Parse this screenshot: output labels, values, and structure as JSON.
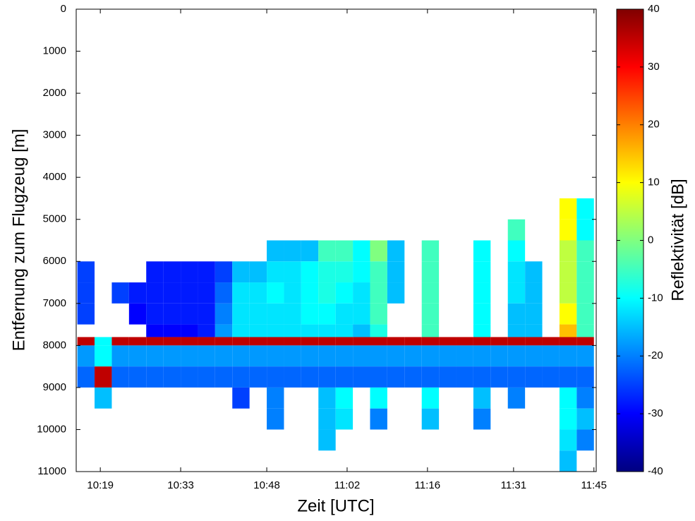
{
  "chart_data": {
    "type": "heatmap",
    "colormap": "jet",
    "xlabel": "Zeit [UTC]",
    "ylabel": "Entfernung zum Flugzeug [m]",
    "colorbar_label": "Reflektivität [dB]",
    "xlim": [
      614.8,
      705.4
    ],
    "xticks": [
      {
        "value": 619,
        "label": "10:19"
      },
      {
        "value": 633,
        "label": "10:33"
      },
      {
        "value": 648,
        "label": "10:48"
      },
      {
        "value": 662,
        "label": "11:02"
      },
      {
        "value": 676,
        "label": "11:16"
      },
      {
        "value": 691,
        "label": "11:31"
      },
      {
        "value": 705,
        "label": "11:45"
      }
    ],
    "ylim": [
      0,
      11000
    ],
    "y_reversed": true,
    "yticks": [
      0,
      1000,
      2000,
      3000,
      4000,
      5000,
      6000,
      7000,
      8000,
      9000,
      10000,
      11000
    ],
    "clim": [
      -40,
      40
    ],
    "cticks": [
      -40,
      -30,
      -20,
      -10,
      0,
      10,
      20,
      30,
      40
    ],
    "x_edges": [
      615,
      618,
      621,
      624,
      627,
      630,
      633,
      636,
      639,
      642,
      645,
      648,
      651,
      654,
      657,
      660,
      663,
      666,
      669,
      672,
      675,
      678,
      681,
      684,
      687,
      690,
      693,
      696,
      699,
      702,
      705
    ],
    "y_edges": [
      4500,
      5000,
      5500,
      6000,
      6500,
      7000,
      7500,
      7800,
      8000,
      8500,
      9000,
      9500,
      10000,
      10500,
      11000
    ],
    "z": [
      [
        null,
        null,
        null,
        null,
        null,
        null,
        null,
        null,
        null,
        null,
        null,
        null,
        null,
        null,
        null,
        null,
        null,
        null,
        null,
        null,
        null,
        null,
        null,
        null,
        null,
        null,
        null,
        null,
        10,
        -10
      ],
      [
        null,
        null,
        null,
        null,
        null,
        null,
        null,
        null,
        null,
        null,
        null,
        null,
        null,
        null,
        null,
        null,
        null,
        null,
        null,
        null,
        null,
        null,
        null,
        null,
        null,
        -5,
        null,
        null,
        10,
        -10
      ],
      [
        null,
        null,
        null,
        null,
        null,
        null,
        null,
        null,
        null,
        null,
        null,
        -15,
        -15,
        -15,
        -5,
        -5,
        -10,
        0,
        -15,
        null,
        -5,
        null,
        null,
        -10,
        null,
        -10,
        null,
        null,
        5,
        -5
      ],
      [
        -25,
        null,
        null,
        null,
        -28,
        -28,
        -28,
        -28,
        -25,
        -15,
        -15,
        -12,
        -12,
        -10,
        -8,
        -8,
        -10,
        -5,
        -15,
        null,
        -5,
        null,
        null,
        -10,
        null,
        -12,
        -15,
        null,
        5,
        -5
      ],
      [
        -25,
        null,
        -25,
        -28,
        -28,
        -28,
        -28,
        -28,
        -22,
        -12,
        -12,
        -10,
        -12,
        -10,
        -8,
        -10,
        -12,
        -5,
        -15,
        null,
        -5,
        null,
        null,
        -10,
        null,
        -12,
        -15,
        null,
        5,
        -5
      ],
      [
        -25,
        null,
        null,
        -30,
        -28,
        -28,
        -28,
        -28,
        -20,
        -12,
        -12,
        -12,
        -12,
        -10,
        -10,
        -12,
        -12,
        -5,
        null,
        null,
        -5,
        null,
        null,
        -10,
        null,
        -15,
        -15,
        null,
        10,
        -5
      ],
      [
        null,
        null,
        null,
        null,
        -30,
        -30,
        -30,
        -28,
        -18,
        -12,
        -12,
        -12,
        -12,
        -12,
        -12,
        -12,
        -15,
        -8,
        null,
        null,
        -5,
        null,
        null,
        -10,
        null,
        -15,
        -15,
        null,
        15,
        -5
      ],
      [
        35,
        -10,
        35,
        35,
        35,
        35,
        35,
        35,
        35,
        35,
        35,
        35,
        35,
        35,
        35,
        35,
        35,
        35,
        35,
        35,
        35,
        35,
        35,
        35,
        35,
        35,
        35,
        35,
        35,
        35
      ],
      [
        -18,
        -10,
        -18,
        -18,
        -18,
        -18,
        -18,
        -18,
        -18,
        -18,
        -18,
        -18,
        -18,
        -18,
        -18,
        -18,
        -18,
        -18,
        -18,
        -18,
        -18,
        -18,
        -18,
        -18,
        -18,
        -18,
        -18,
        -18,
        -18,
        -18
      ],
      [
        -22,
        35,
        -22,
        -22,
        -22,
        -22,
        -22,
        -22,
        -22,
        -22,
        -22,
        -22,
        -22,
        -22,
        -22,
        -22,
        -22,
        -22,
        -22,
        -22,
        -22,
        -22,
        -22,
        -22,
        -22,
        -22,
        -22,
        -22,
        -22,
        -22
      ],
      [
        null,
        -15,
        null,
        null,
        null,
        null,
        null,
        null,
        null,
        -25,
        null,
        -20,
        null,
        null,
        -15,
        -10,
        null,
        -10,
        null,
        null,
        -10,
        null,
        null,
        -15,
        null,
        -20,
        null,
        null,
        -10,
        -20
      ],
      [
        null,
        null,
        null,
        null,
        null,
        null,
        null,
        null,
        null,
        null,
        null,
        -20,
        null,
        null,
        -15,
        -12,
        null,
        -20,
        null,
        null,
        -15,
        null,
        null,
        -20,
        null,
        null,
        null,
        null,
        -10,
        -15
      ],
      [
        null,
        null,
        null,
        null,
        null,
        null,
        null,
        null,
        null,
        null,
        null,
        null,
        null,
        null,
        -15,
        null,
        null,
        null,
        null,
        null,
        null,
        null,
        null,
        null,
        null,
        null,
        null,
        null,
        -12,
        -20
      ],
      [
        null,
        null,
        null,
        null,
        null,
        null,
        null,
        null,
        null,
        null,
        null,
        null,
        null,
        null,
        null,
        null,
        null,
        null,
        null,
        null,
        null,
        null,
        null,
        null,
        null,
        null,
        null,
        null,
        -15,
        null
      ]
    ]
  }
}
